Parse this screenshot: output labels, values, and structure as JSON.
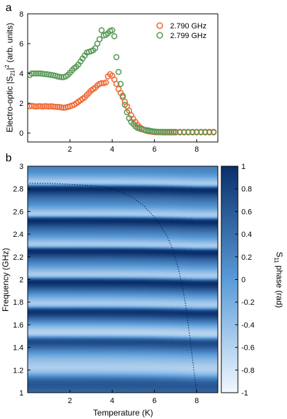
{
  "chart_data": [
    {
      "type": "scatter",
      "panel_label": "a",
      "xlabel": "",
      "ylabel": "Electro-optic |S",
      "ylabel_sub": "21",
      "ylabel_tail": "|",
      "ylabel_sup": "2",
      "ylabel_end": " (arb. units)",
      "xlim": [
        0,
        9
      ],
      "ylim": [
        -0.6,
        8
      ],
      "xticks": [
        2,
        4,
        6,
        8
      ],
      "yticks": [
        0,
        2,
        4,
        6,
        8
      ],
      "legend_position": "top-right",
      "series": [
        {
          "name": "2.790 GHz",
          "color": "#f06a35",
          "x": [
            0.1,
            0.2,
            0.3,
            0.4,
            0.5,
            0.6,
            0.7,
            0.8,
            0.9,
            1.0,
            1.1,
            1.2,
            1.3,
            1.4,
            1.5,
            1.6,
            1.7,
            1.8,
            1.9,
            2.0,
            2.1,
            2.2,
            2.3,
            2.4,
            2.5,
            2.6,
            2.7,
            2.8,
            2.9,
            3.0,
            3.1,
            3.2,
            3.3,
            3.4,
            3.5,
            3.6,
            3.7,
            3.8,
            3.9,
            4.0,
            4.1,
            4.2,
            4.3,
            4.4,
            4.5,
            4.6,
            4.7,
            4.8,
            4.9,
            5.0,
            5.1,
            5.2,
            5.3,
            5.4,
            5.5,
            5.6,
            5.7,
            5.8,
            5.9,
            6.0,
            6.1,
            6.2,
            6.3,
            6.4,
            6.5,
            6.6,
            6.7,
            6.8,
            6.9,
            7.0,
            7.2,
            7.4,
            7.6,
            7.8,
            8.0,
            8.2,
            8.4,
            8.6,
            8.8
          ],
          "y": [
            1.8,
            1.82,
            1.8,
            1.78,
            1.8,
            1.8,
            1.78,
            1.8,
            1.8,
            1.78,
            1.8,
            1.78,
            1.76,
            1.75,
            1.75,
            1.72,
            1.7,
            1.72,
            1.75,
            1.8,
            1.85,
            1.9,
            2.0,
            2.1,
            2.2,
            2.3,
            2.4,
            2.55,
            2.7,
            2.85,
            2.95,
            3.05,
            3.2,
            3.3,
            3.35,
            3.35,
            3.4,
            3.8,
            3.95,
            3.85,
            3.6,
            3.3,
            2.95,
            2.7,
            2.4,
            2.1,
            1.8,
            1.5,
            1.2,
            0.95,
            0.75,
            0.55,
            0.4,
            0.3,
            0.22,
            0.16,
            0.12,
            0.1,
            0.08,
            0.06,
            0.05,
            0.05,
            0.05,
            0.04,
            0.04,
            0.04,
            0.04,
            0.04,
            0.04,
            0.04,
            0.04,
            0.04,
            0.04,
            0.04,
            0.04,
            0.04,
            0.04,
            0.04,
            0.04
          ]
        },
        {
          "name": "2.799 GHz",
          "color": "#5a9a5a",
          "x": [
            0.1,
            0.2,
            0.3,
            0.4,
            0.5,
            0.6,
            0.7,
            0.8,
            0.9,
            1.0,
            1.1,
            1.2,
            1.3,
            1.4,
            1.5,
            1.6,
            1.7,
            1.8,
            1.9,
            2.0,
            2.1,
            2.2,
            2.3,
            2.4,
            2.5,
            2.6,
            2.7,
            2.8,
            2.9,
            3.0,
            3.1,
            3.2,
            3.3,
            3.4,
            3.5,
            3.6,
            3.7,
            3.8,
            3.9,
            4.0,
            4.1,
            4.2,
            4.3,
            4.4,
            4.5,
            4.6,
            4.7,
            4.8,
            4.9,
            5.0,
            5.1,
            5.2,
            5.3,
            5.4,
            5.5,
            5.6,
            5.7,
            5.8,
            5.9,
            6.0,
            6.1,
            6.2,
            6.3,
            6.4,
            6.5,
            6.6,
            6.7,
            6.8,
            6.9,
            7.0,
            7.2,
            7.4,
            7.6,
            7.8,
            8.0,
            8.2,
            8.4,
            8.6,
            8.8
          ],
          "y": [
            3.9,
            4.0,
            4.0,
            4.0,
            4.0,
            4.0,
            3.98,
            3.96,
            3.95,
            3.93,
            3.9,
            3.88,
            3.85,
            3.8,
            3.78,
            3.75,
            3.75,
            3.8,
            3.9,
            4.05,
            4.2,
            4.35,
            4.45,
            4.6,
            4.8,
            5.0,
            5.2,
            5.4,
            5.45,
            5.5,
            5.55,
            5.7,
            6.0,
            6.3,
            6.9,
            6.55,
            6.6,
            6.7,
            6.85,
            6.9,
            6.5,
            5.1,
            4.1,
            3.3,
            2.5,
            1.9,
            1.4,
            1.0,
            0.75,
            0.6,
            0.45,
            0.35,
            0.3,
            0.25,
            0.22,
            0.2,
            0.18,
            0.15,
            0.12,
            0.1,
            0.09,
            0.08,
            0.08,
            0.08,
            0.08,
            0.08,
            0.08,
            0.08,
            0.08,
            0.08,
            0.08,
            0.08,
            0.08,
            0.08,
            0.08,
            0.08,
            0.08,
            0.08,
            0.08
          ]
        }
      ]
    },
    {
      "type": "heatmap",
      "panel_label": "b",
      "xlabel": "Temperature (K)",
      "ylabel": "Frequency (GHz)",
      "xlim": [
        0,
        9
      ],
      "ylim": [
        1,
        3
      ],
      "xticks": [
        2,
        4,
        6,
        8
      ],
      "yticks": [
        1,
        1.2,
        1.4,
        1.6,
        1.8,
        2,
        2.2,
        2.4,
        2.6,
        2.8,
        3
      ],
      "colorbar": {
        "label": "S",
        "label_sub": "11",
        "label_tail": " phase (rad)",
        "range": [
          -1,
          1
        ],
        "ticks": [
          1,
          0.8,
          0.6,
          0.4,
          0.2,
          0,
          -0.2,
          -0.4,
          -0.6,
          -0.8,
          -1
        ],
        "color_low": "#f2f8ff",
        "color_high": "#0a2f6b"
      },
      "bands": [
        {
          "center": 2.78,
          "f0": 2.83,
          "width": 0.04
        },
        {
          "center": 2.52,
          "f0": 2.55,
          "width": 0.04
        },
        {
          "center": 2.27,
          "f0": 2.28,
          "width": 0.04
        },
        {
          "center": 2.0,
          "f0": 2.01,
          "width": 0.045
        },
        {
          "center": 1.74,
          "f0": 1.75,
          "width": 0.05
        },
        {
          "center": 1.48,
          "f0": 1.49,
          "width": 0.06
        },
        {
          "center": 1.15,
          "f0": 1.15,
          "width": 0.12
        }
      ],
      "dotted_curve": {
        "x": [
          0.1,
          1.0,
          2.0,
          3.0,
          3.5,
          4.0,
          4.5,
          5.0,
          5.5,
          6.0,
          6.3,
          6.6,
          6.9,
          7.1,
          7.3,
          7.5,
          7.7,
          7.85,
          8.0
        ],
        "y": [
          2.85,
          2.85,
          2.84,
          2.83,
          2.82,
          2.8,
          2.77,
          2.72,
          2.65,
          2.55,
          2.47,
          2.38,
          2.25,
          2.12,
          1.96,
          1.75,
          1.45,
          1.22,
          1.0
        ]
      }
    }
  ]
}
